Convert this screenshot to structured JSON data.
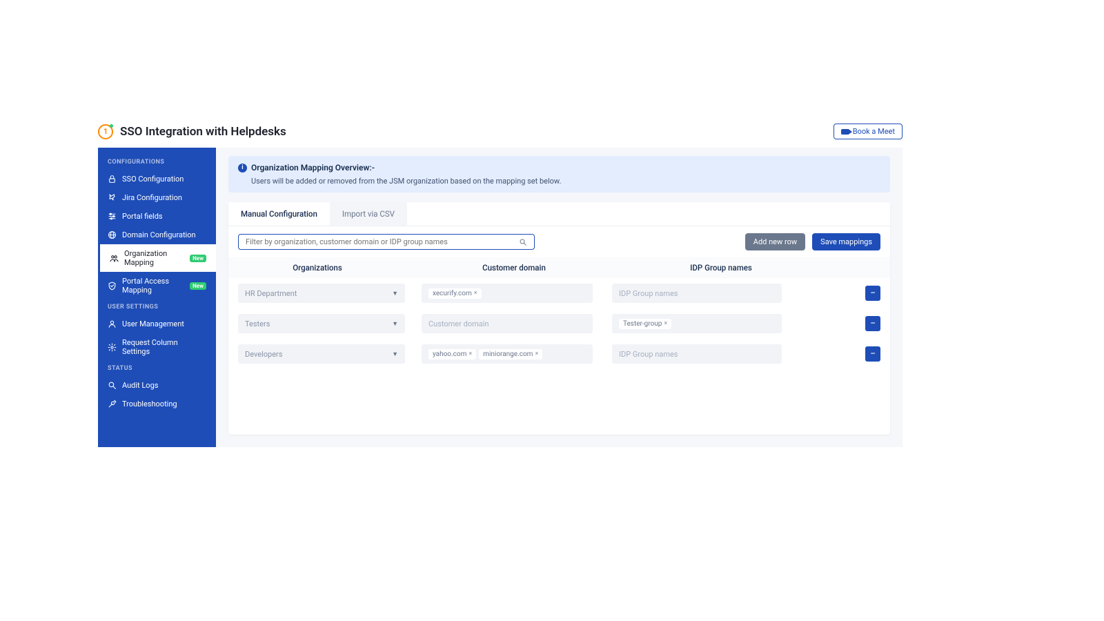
{
  "colors": {
    "primary": "#1e4db7",
    "sidebar_bg": "#1e4db7",
    "notice_bg": "#e3edfd",
    "btn_grey": "#6b778c",
    "accent_green": "#2ecc71",
    "logo_orange": "#ff8a00"
  },
  "header": {
    "title": "SSO Integration with Helpdesks",
    "book_meet_label": "Book a Meet"
  },
  "sidebar": {
    "sections": [
      {
        "label": "CONFIGURATIONS",
        "items": [
          {
            "id": "sso-configuration",
            "label": "SSO Configuration",
            "icon": "lock",
            "badge": null,
            "active": false
          },
          {
            "id": "jira-configuration",
            "label": "Jira Configuration",
            "icon": "pin",
            "badge": null,
            "active": false
          },
          {
            "id": "portal-fields",
            "label": "Portal fields",
            "icon": "sliders",
            "badge": null,
            "active": false
          },
          {
            "id": "domain-configuration",
            "label": "Domain Configuration",
            "icon": "globe",
            "badge": null,
            "active": false
          },
          {
            "id": "organization-mapping",
            "label": "Organization Mapping",
            "icon": "people",
            "badge": "New",
            "active": true
          },
          {
            "id": "portal-access-mapping",
            "label": "Portal Access Mapping",
            "icon": "shield",
            "badge": "New",
            "active": false
          }
        ]
      },
      {
        "label": "USER SETTINGS",
        "items": [
          {
            "id": "user-management",
            "label": "User Management",
            "icon": "user",
            "badge": null,
            "active": false
          },
          {
            "id": "request-column-settings",
            "label": "Request Column Settings",
            "icon": "gear",
            "badge": null,
            "active": false
          }
        ]
      },
      {
        "label": "STATUS",
        "items": [
          {
            "id": "audit-logs",
            "label": "Audit Logs",
            "icon": "search",
            "badge": null,
            "active": false
          },
          {
            "id": "troubleshooting",
            "label": "Troubleshooting",
            "icon": "wrench",
            "badge": null,
            "active": false
          }
        ]
      }
    ]
  },
  "notice": {
    "title": "Organization Mapping Overview:-",
    "body": "Users will be added or removed from the JSM organization based on the mapping set below."
  },
  "tabs": [
    {
      "id": "manual",
      "label": "Manual Configuration",
      "active": true
    },
    {
      "id": "csv",
      "label": "Import via CSV",
      "active": false
    }
  ],
  "search": {
    "placeholder": "Filter by organization, customer domain or IDP group names"
  },
  "buttons": {
    "add_row": "Add new row",
    "save": "Save mappings"
  },
  "table": {
    "columns": {
      "org": "Organizations",
      "domain": "Customer domain",
      "idp": "IDP Group names"
    },
    "placeholders": {
      "domain": "Customer domain",
      "idp": "IDP Group names"
    },
    "rows": [
      {
        "org": "HR Department",
        "domains": [
          "xecurify.com"
        ],
        "idp_groups": []
      },
      {
        "org": "Testers",
        "domains": [],
        "idp_groups": [
          "Tester-group"
        ]
      },
      {
        "org": "Developers",
        "domains": [
          "yahoo.com",
          "miniorange.com"
        ],
        "idp_groups": []
      }
    ]
  }
}
